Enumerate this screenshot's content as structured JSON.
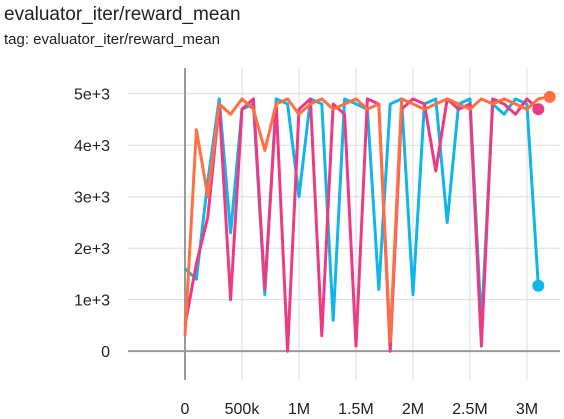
{
  "chart_data": {
    "type": "line",
    "title": "evaluator_iter/reward_mean",
    "subtitle": "tag: evaluator_iter/reward_mean",
    "xlim": [
      -500000,
      3290000
    ],
    "ylim": [
      -560,
      5500
    ],
    "xticks": [
      0,
      {
        "value": 500000,
        "label": "500k"
      },
      {
        "value": 1000000,
        "label": "1M"
      },
      {
        "value": 1500000,
        "label": "1.5M"
      },
      {
        "value": 2000000,
        "label": "2M"
      },
      {
        "value": 2500000,
        "label": "2.5M"
      },
      {
        "value": 3000000,
        "label": "3M"
      }
    ],
    "yticks": [
      0,
      {
        "value": 1000,
        "label": "1e+3"
      },
      {
        "value": 2000,
        "label": "2e+3"
      },
      {
        "value": 3000,
        "label": "3e+3"
      },
      {
        "value": 4000,
        "label": "4e+3"
      },
      {
        "value": 5000,
        "label": "5e+3"
      }
    ],
    "grid": true,
    "series": [
      {
        "color": "#12b5ea",
        "x": [
          0,
          100000,
          200000,
          300000,
          400000,
          500000,
          600000,
          700000,
          800000,
          900000,
          1000000,
          1100000,
          1200000,
          1300000,
          1400000,
          1500000,
          1600000,
          1700000,
          1800000,
          1900000,
          2000000,
          2100000,
          2200000,
          2300000,
          2400000,
          2500000,
          2600000,
          2700000,
          2800000,
          2900000,
          3000000,
          3100000
        ],
        "values": [
          1600,
          1400,
          3300,
          4900,
          2300,
          4700,
          4800,
          1100,
          4900,
          4800,
          3000,
          4900,
          4800,
          600,
          4900,
          4800,
          4700,
          1200,
          4800,
          4900,
          1100,
          4800,
          4900,
          2500,
          4800,
          4900,
          500,
          4800,
          4600,
          4900,
          4800,
          1270
        ]
      },
      {
        "color": "#ee3a82",
        "x": [
          0,
          100000,
          200000,
          300000,
          400000,
          500000,
          600000,
          700000,
          800000,
          900000,
          1000000,
          1100000,
          1200000,
          1300000,
          1400000,
          1500000,
          1600000,
          1700000,
          1800000,
          1900000,
          2000000,
          2100000,
          2200000,
          2300000,
          2400000,
          2500000,
          2600000,
          2700000,
          2800000,
          2900000,
          3000000,
          3100000
        ],
        "values": [
          500,
          1700,
          2600,
          4800,
          1000,
          4700,
          4900,
          1200,
          4800,
          0,
          4700,
          4900,
          300,
          4800,
          4600,
          100,
          4900,
          4800,
          0,
          4700,
          4900,
          4800,
          3500,
          4900,
          4700,
          4800,
          100,
          4900,
          4800,
          4600,
          4900,
          4700
        ]
      },
      {
        "color": "#ff7043",
        "x": [
          0,
          100000,
          200000,
          300000,
          400000,
          500000,
          600000,
          700000,
          800000,
          900000,
          1000000,
          1100000,
          1200000,
          1300000,
          1400000,
          1500000,
          1600000,
          1700000,
          1800000,
          1900000,
          2000000,
          2100000,
          2200000,
          2300000,
          2400000,
          2500000,
          2600000,
          2700000,
          2800000,
          2900000,
          3000000,
          3100000,
          3200000
        ],
        "values": [
          300,
          4300,
          3000,
          4800,
          4600,
          4900,
          4700,
          3900,
          4800,
          4900,
          4600,
          4800,
          4900,
          4700,
          4800,
          4900,
          4700,
          4800,
          200,
          4900,
          4800,
          4700,
          4800,
          4900,
          4800,
          4700,
          4900,
          4800,
          4900,
          4800,
          4700,
          4900,
          4940
        ]
      }
    ]
  }
}
